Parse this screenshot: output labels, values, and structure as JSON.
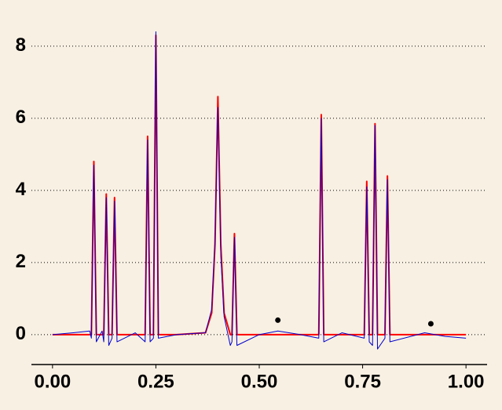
{
  "chart_data": {
    "type": "line",
    "x": [
      0.0,
      0.05,
      0.09,
      0.094,
      0.1,
      0.106,
      0.12,
      0.124,
      0.13,
      0.136,
      0.144,
      0.15,
      0.156,
      0.2,
      0.224,
      0.23,
      0.236,
      0.244,
      0.25,
      0.256,
      0.3,
      0.37,
      0.385,
      0.393,
      0.4,
      0.407,
      0.415,
      0.43,
      0.434,
      0.44,
      0.446,
      0.5,
      0.545,
      0.6,
      0.644,
      0.65,
      0.656,
      0.7,
      0.754,
      0.76,
      0.766,
      0.774,
      0.78,
      0.786,
      0.804,
      0.81,
      0.816,
      0.9,
      0.95,
      1.0
    ],
    "series": [
      {
        "color": "#ff0000",
        "width": 2,
        "values": [
          0,
          0,
          0,
          0,
          4.8,
          0,
          0,
          0,
          3.9,
          0,
          0,
          3.8,
          0,
          0,
          0,
          5.5,
          0,
          0,
          8.3,
          0,
          0,
          0.05,
          0.6,
          2.5,
          6.6,
          2.5,
          0.6,
          0,
          0,
          2.8,
          0,
          0,
          0,
          0,
          0,
          6.1,
          0,
          0,
          0,
          4.25,
          0,
          0,
          5.85,
          0,
          0,
          4.4,
          0,
          0,
          0,
          0
        ]
      },
      {
        "color": "#0000cc",
        "width": 1,
        "values": [
          0,
          0.05,
          0.1,
          -0.1,
          4.7,
          -0.2,
          0.1,
          -0.2,
          3.8,
          -0.3,
          -0.1,
          3.7,
          -0.2,
          0.05,
          -0.2,
          5.4,
          -0.2,
          -0.1,
          8.4,
          -0.1,
          0,
          0.05,
          0.7,
          2.6,
          6.3,
          2.2,
          0.5,
          -0.3,
          -0.2,
          2.7,
          -0.3,
          0,
          0.1,
          0,
          -0.1,
          6.0,
          -0.2,
          0.05,
          -0.1,
          4.1,
          -0.2,
          -0.3,
          5.8,
          -0.4,
          -0.1,
          4.3,
          -0.2,
          0.05,
          -0.05,
          -0.1
        ]
      }
    ],
    "points": {
      "color": "#000000",
      "x": [
        0.545,
        0.915
      ],
      "values": [
        0.4,
        0.3
      ]
    },
    "xlim": [
      -0.051,
      1.051
    ],
    "ylim": [
      -0.83,
      8.41
    ],
    "xticks": [
      {
        "value": 0,
        "label": "0.00"
      },
      {
        "value": 0.25,
        "label": "0.25"
      },
      {
        "value": 0.5,
        "label": "0.50"
      },
      {
        "value": 0.75,
        "label": "0.75"
      },
      {
        "value": 1,
        "label": "1.00"
      }
    ],
    "yticks": [
      0,
      2,
      4,
      6,
      8
    ],
    "grid": true
  }
}
